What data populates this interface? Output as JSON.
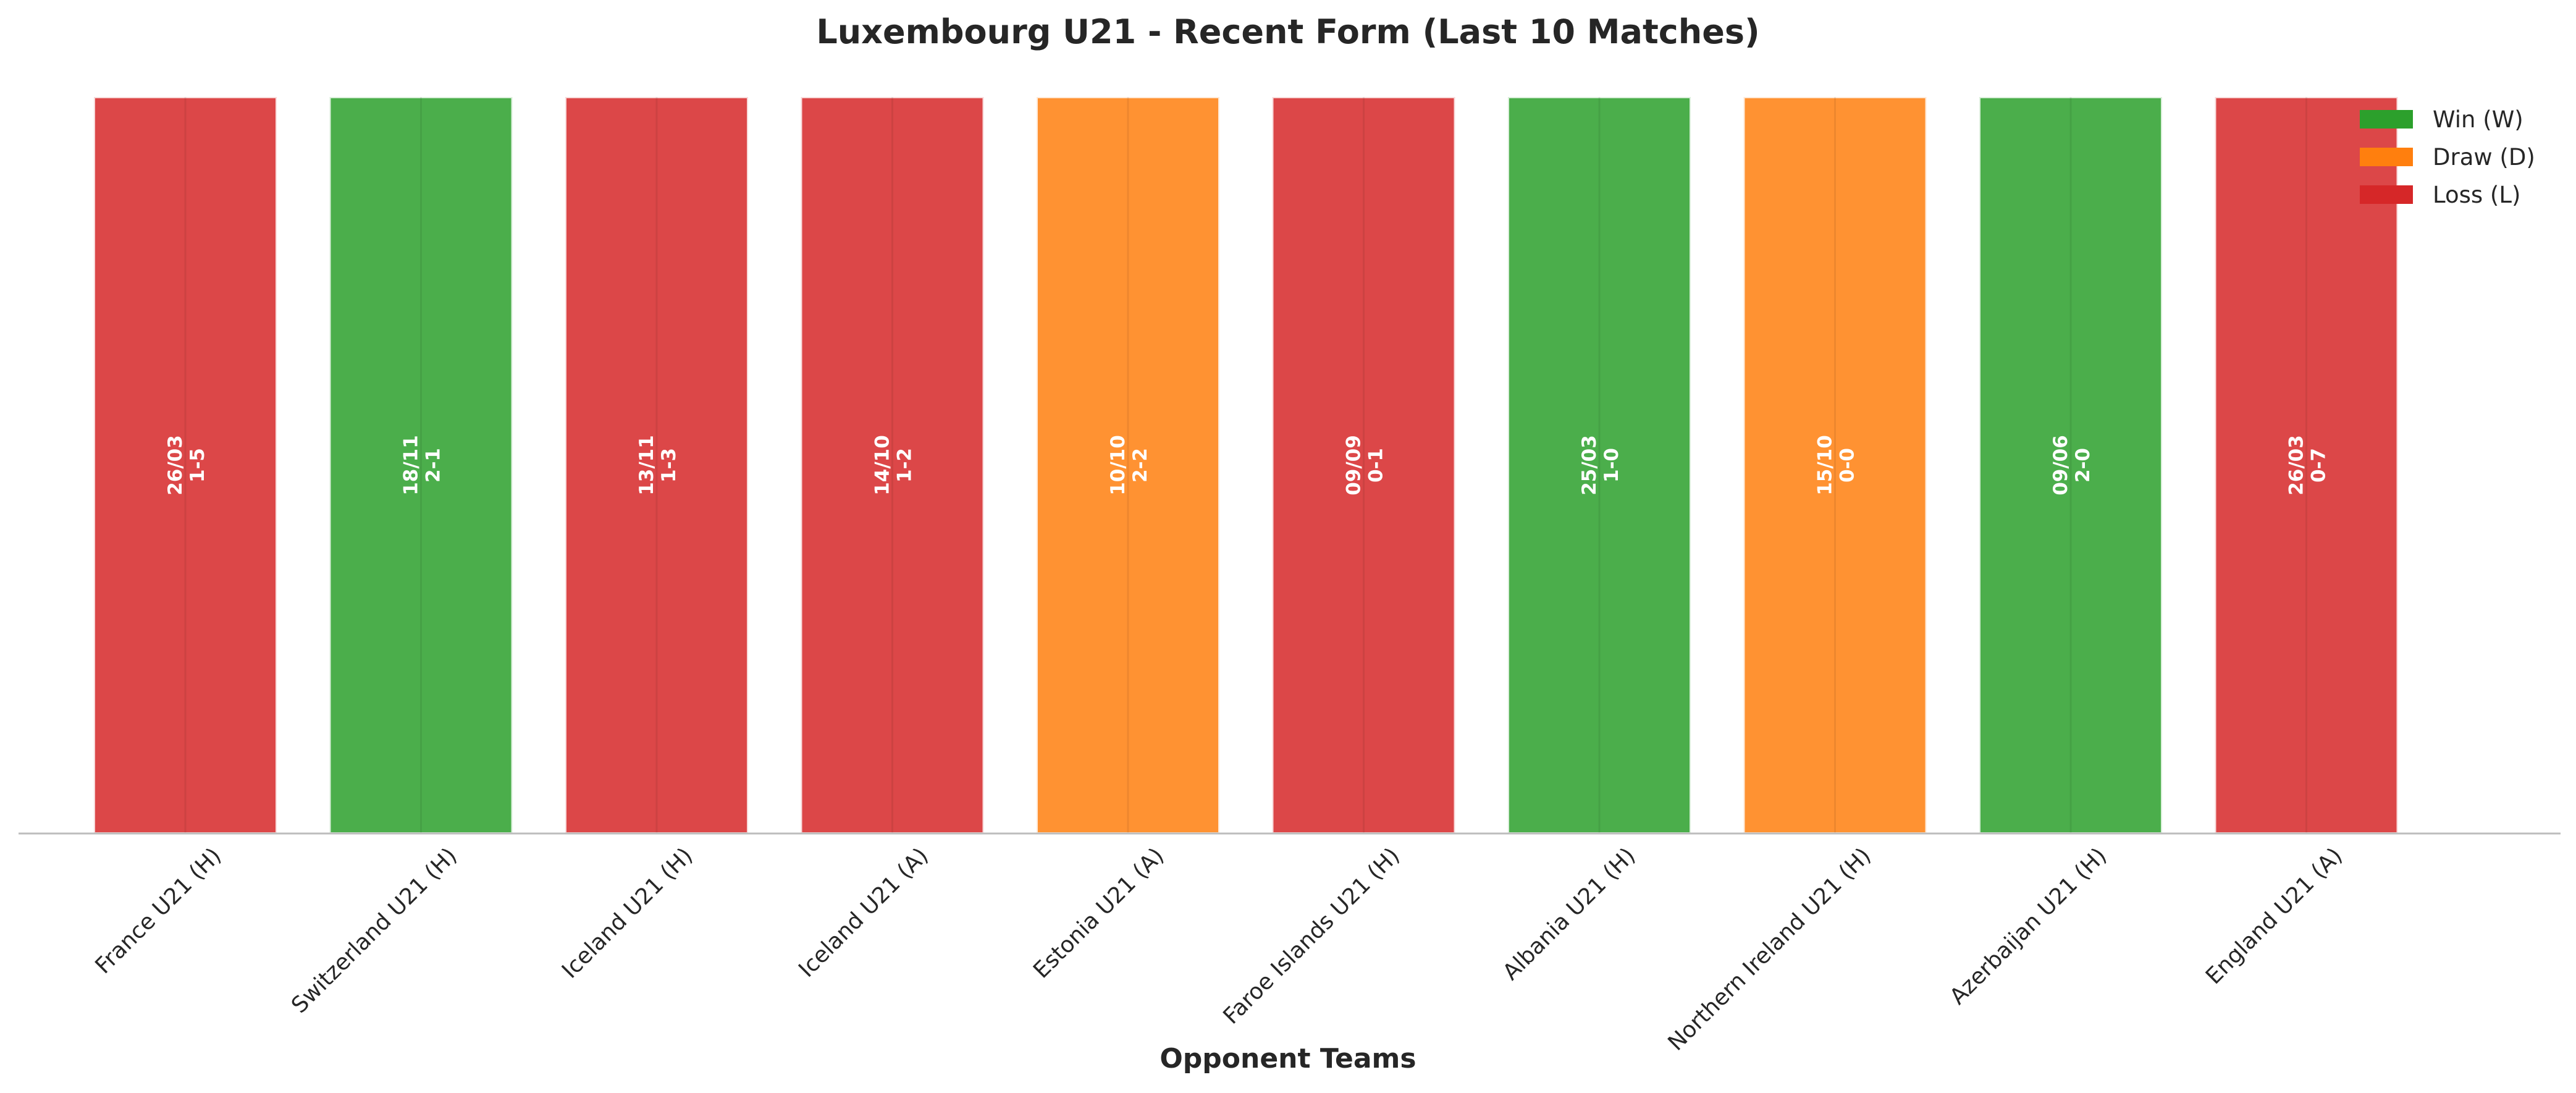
{
  "chart_data": {
    "type": "bar",
    "title": "Luxembourg U21 - Recent Form (Last 10 Matches)",
    "xlabel": "Opponent Teams",
    "ylabel": "",
    "ylim": [
      0,
      1
    ],
    "grid": false,
    "legend_position": "top-right",
    "legend": [
      {
        "key": "W",
        "label": "Win (W)",
        "color": "#2ca02c"
      },
      {
        "key": "D",
        "label": "Draw (D)",
        "color": "#ff7f0e"
      },
      {
        "key": "L",
        "label": "Loss (L)",
        "color": "#d62728"
      }
    ],
    "matches": [
      {
        "opponent": "France U21 (H)",
        "date": "26/03",
        "score": "1-5",
        "result": "L",
        "value": 1
      },
      {
        "opponent": "Switzerland U21 (H)",
        "date": "18/11",
        "score": "2-1",
        "result": "W",
        "value": 1
      },
      {
        "opponent": "Iceland U21 (H)",
        "date": "13/11",
        "score": "1-3",
        "result": "L",
        "value": 1
      },
      {
        "opponent": "Iceland U21 (A)",
        "date": "14/10",
        "score": "1-2",
        "result": "L",
        "value": 1
      },
      {
        "opponent": "Estonia U21 (A)",
        "date": "10/10",
        "score": "2-2",
        "result": "D",
        "value": 1
      },
      {
        "opponent": "Faroe Islands U21 (H)",
        "date": "09/09",
        "score": "0-1",
        "result": "L",
        "value": 1
      },
      {
        "opponent": "Albania U21 (H)",
        "date": "25/03",
        "score": "1-0",
        "result": "W",
        "value": 1
      },
      {
        "opponent": "Northern Ireland U21 (H)",
        "date": "15/10",
        "score": "0-0",
        "result": "D",
        "value": 1
      },
      {
        "opponent": "Azerbaijan U21 (H)",
        "date": "09/06",
        "score": "2-0",
        "result": "W",
        "value": 1
      },
      {
        "opponent": "England U21 (A)",
        "date": "26/03",
        "score": "0-7",
        "result": "L",
        "value": 1
      }
    ]
  }
}
